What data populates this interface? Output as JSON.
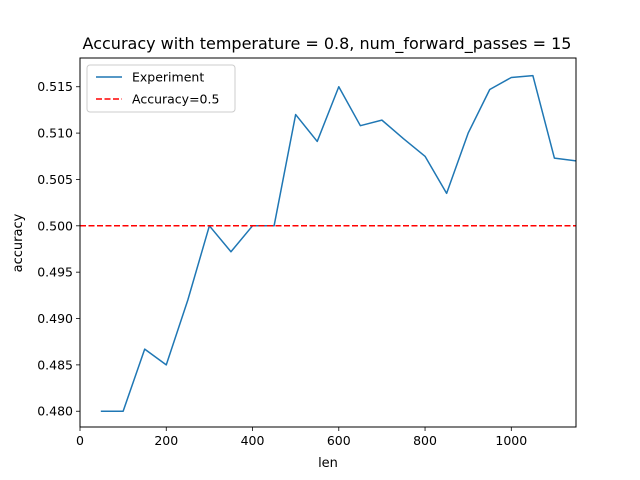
{
  "chart_data": {
    "type": "line",
    "title": "Accuracy with temperature = 0.8, num_forward_passes = 15",
    "xlabel": "len",
    "ylabel": "accuracy",
    "xlim": [
      0,
      1150
    ],
    "ylim": [
      0.4783,
      0.5181
    ],
    "xticks": [
      0,
      200,
      400,
      600,
      800,
      1000
    ],
    "xtick_labels": [
      "0",
      "200",
      "400",
      "600",
      "800",
      "1000"
    ],
    "yticks": [
      0.48,
      0.485,
      0.49,
      0.495,
      0.5,
      0.505,
      0.51,
      0.515
    ],
    "ytick_labels": [
      "0.480",
      "0.485",
      "0.490",
      "0.495",
      "0.500",
      "0.505",
      "0.510",
      "0.515"
    ],
    "grid": false,
    "legend_position": "top-left",
    "series": [
      {
        "name": "Experiment",
        "color": "#1f77b4",
        "style": "solid",
        "x": [
          50,
          100,
          150,
          200,
          250,
          300,
          350,
          400,
          450,
          500,
          550,
          600,
          650,
          700,
          750,
          800,
          850,
          900,
          950,
          1000,
          1050,
          1100,
          1150
        ],
        "y": [
          0.48,
          0.48,
          0.4867,
          0.485,
          0.492,
          0.5,
          0.4972,
          0.5,
          0.5,
          0.512,
          0.5091,
          0.515,
          0.5108,
          0.5114,
          0.5094,
          0.5075,
          0.5035,
          0.51,
          0.5147,
          0.516,
          0.5162,
          0.5073,
          0.507
        ]
      },
      {
        "name": "Accuracy=0.5",
        "color": "#ff0000",
        "style": "dashed",
        "hline": 0.5
      }
    ]
  }
}
